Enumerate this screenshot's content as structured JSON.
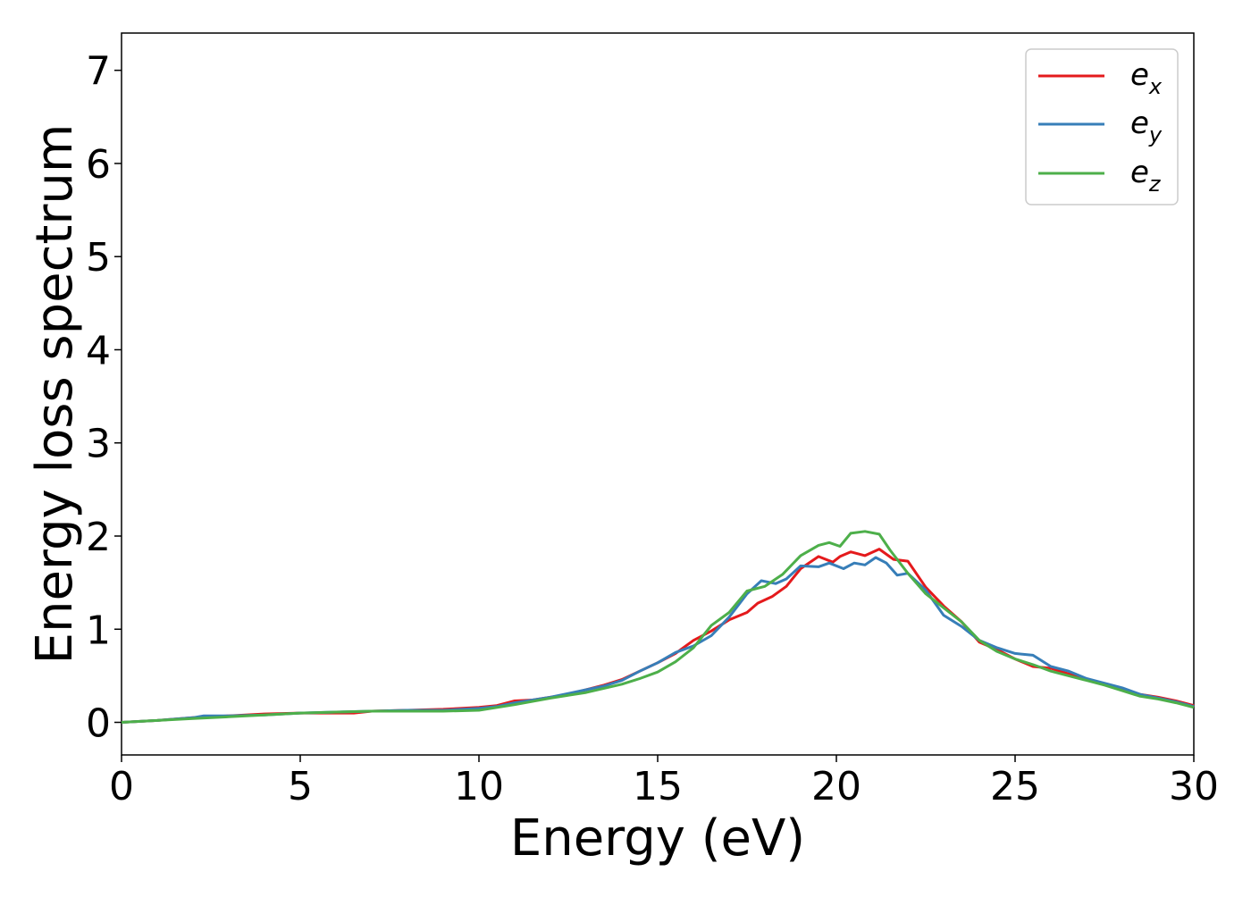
{
  "chart_data": {
    "type": "line",
    "title": "",
    "xlabel": "Energy (eV)",
    "ylabel": "Energy loss spectrum",
    "xlim": [
      0,
      30
    ],
    "ylim": [
      -0.35,
      7.4
    ],
    "xticks": [
      "0",
      "5",
      "10",
      "15",
      "20",
      "25",
      "30"
    ],
    "yticks": [
      "0",
      "1",
      "2",
      "3",
      "4",
      "5",
      "6",
      "7"
    ],
    "grid": false,
    "legend_position": "top-right",
    "series": [
      {
        "name": "e_x",
        "legend_base": "e",
        "legend_sub": "x",
        "color": "#e41a1c",
        "points": [
          [
            0,
            0.0
          ],
          [
            1,
            0.02
          ],
          [
            2,
            0.05
          ],
          [
            3,
            0.07
          ],
          [
            4,
            0.09
          ],
          [
            5,
            0.1
          ],
          [
            6,
            0.1
          ],
          [
            6.5,
            0.1
          ],
          [
            7,
            0.12
          ],
          [
            8,
            0.13
          ],
          [
            9,
            0.14
          ],
          [
            10,
            0.16
          ],
          [
            10.5,
            0.18
          ],
          [
            11,
            0.23
          ],
          [
            11.5,
            0.24
          ],
          [
            12,
            0.27
          ],
          [
            12.5,
            0.3
          ],
          [
            13,
            0.35
          ],
          [
            13.5,
            0.4
          ],
          [
            14,
            0.46
          ],
          [
            14.5,
            0.55
          ],
          [
            15,
            0.64
          ],
          [
            15.5,
            0.74
          ],
          [
            16,
            0.88
          ],
          [
            16.5,
            0.98
          ],
          [
            17,
            1.1
          ],
          [
            17.5,
            1.18
          ],
          [
            17.8,
            1.28
          ],
          [
            18.2,
            1.35
          ],
          [
            18.6,
            1.46
          ],
          [
            19,
            1.65
          ],
          [
            19.5,
            1.78
          ],
          [
            19.9,
            1.72
          ],
          [
            20.1,
            1.78
          ],
          [
            20.4,
            1.83
          ],
          [
            20.8,
            1.79
          ],
          [
            21.2,
            1.86
          ],
          [
            21.6,
            1.75
          ],
          [
            22,
            1.73
          ],
          [
            22.5,
            1.45
          ],
          [
            23,
            1.25
          ],
          [
            23.5,
            1.08
          ],
          [
            24,
            0.86
          ],
          [
            24.5,
            0.78
          ],
          [
            25,
            0.68
          ],
          [
            25.5,
            0.6
          ],
          [
            26,
            0.58
          ],
          [
            26.5,
            0.52
          ],
          [
            27,
            0.46
          ],
          [
            27.5,
            0.41
          ],
          [
            28,
            0.35
          ],
          [
            28.5,
            0.3
          ],
          [
            29,
            0.27
          ],
          [
            29.5,
            0.23
          ],
          [
            30,
            0.18
          ]
        ]
      },
      {
        "name": "e_y",
        "legend_base": "e",
        "legend_sub": "y",
        "color": "#377eb8",
        "points": [
          [
            0,
            0.0
          ],
          [
            1,
            0.02
          ],
          [
            2,
            0.05
          ],
          [
            2.3,
            0.07
          ],
          [
            3,
            0.07
          ],
          [
            4,
            0.08
          ],
          [
            5,
            0.1
          ],
          [
            6,
            0.11
          ],
          [
            7,
            0.12
          ],
          [
            8,
            0.13
          ],
          [
            9,
            0.13
          ],
          [
            10,
            0.15
          ],
          [
            10.5,
            0.17
          ],
          [
            11,
            0.21
          ],
          [
            12,
            0.27
          ],
          [
            12.5,
            0.31
          ],
          [
            13,
            0.35
          ],
          [
            13.5,
            0.39
          ],
          [
            14,
            0.45
          ],
          [
            14.5,
            0.55
          ],
          [
            15,
            0.64
          ],
          [
            15.5,
            0.75
          ],
          [
            16,
            0.82
          ],
          [
            16.5,
            0.93
          ],
          [
            17,
            1.13
          ],
          [
            17.5,
            1.38
          ],
          [
            17.9,
            1.52
          ],
          [
            18.3,
            1.49
          ],
          [
            18.6,
            1.54
          ],
          [
            19,
            1.68
          ],
          [
            19.5,
            1.67
          ],
          [
            19.8,
            1.71
          ],
          [
            20.2,
            1.65
          ],
          [
            20.5,
            1.71
          ],
          [
            20.8,
            1.69
          ],
          [
            21.1,
            1.77
          ],
          [
            21.4,
            1.71
          ],
          [
            21.7,
            1.58
          ],
          [
            22,
            1.6
          ],
          [
            22.5,
            1.42
          ],
          [
            23,
            1.15
          ],
          [
            23.5,
            1.03
          ],
          [
            24,
            0.88
          ],
          [
            24.5,
            0.8
          ],
          [
            25,
            0.74
          ],
          [
            25.5,
            0.72
          ],
          [
            26,
            0.6
          ],
          [
            26.5,
            0.55
          ],
          [
            27,
            0.47
          ],
          [
            27.5,
            0.42
          ],
          [
            28,
            0.37
          ],
          [
            28.5,
            0.3
          ],
          [
            29,
            0.26
          ],
          [
            29.5,
            0.22
          ],
          [
            30,
            0.17
          ]
        ]
      },
      {
        "name": "e_z",
        "legend_base": "e",
        "legend_sub": "z",
        "color": "#4daf4a",
        "points": [
          [
            0,
            0.0
          ],
          [
            1,
            0.02
          ],
          [
            2,
            0.04
          ],
          [
            3,
            0.06
          ],
          [
            4,
            0.08
          ],
          [
            5,
            0.1
          ],
          [
            6,
            0.11
          ],
          [
            7,
            0.12
          ],
          [
            8,
            0.12
          ],
          [
            9,
            0.12
          ],
          [
            10,
            0.13
          ],
          [
            11,
            0.19
          ],
          [
            12,
            0.26
          ],
          [
            13,
            0.32
          ],
          [
            14,
            0.41
          ],
          [
            14.5,
            0.47
          ],
          [
            15,
            0.54
          ],
          [
            15.5,
            0.65
          ],
          [
            16,
            0.8
          ],
          [
            16.5,
            1.04
          ],
          [
            17,
            1.18
          ],
          [
            17.5,
            1.41
          ],
          [
            18,
            1.46
          ],
          [
            18.5,
            1.59
          ],
          [
            19,
            1.79
          ],
          [
            19.5,
            1.9
          ],
          [
            19.8,
            1.93
          ],
          [
            20.1,
            1.89
          ],
          [
            20.4,
            2.03
          ],
          [
            20.8,
            2.05
          ],
          [
            21.2,
            2.02
          ],
          [
            21.5,
            1.85
          ],
          [
            22,
            1.6
          ],
          [
            22.5,
            1.38
          ],
          [
            23,
            1.23
          ],
          [
            23.5,
            1.08
          ],
          [
            24,
            0.88
          ],
          [
            24.5,
            0.76
          ],
          [
            25,
            0.68
          ],
          [
            25.5,
            0.62
          ],
          [
            26,
            0.55
          ],
          [
            26.5,
            0.5
          ],
          [
            27,
            0.45
          ],
          [
            27.5,
            0.4
          ],
          [
            28,
            0.34
          ],
          [
            28.5,
            0.28
          ],
          [
            29,
            0.25
          ],
          [
            29.5,
            0.21
          ],
          [
            30,
            0.16
          ]
        ]
      }
    ]
  }
}
